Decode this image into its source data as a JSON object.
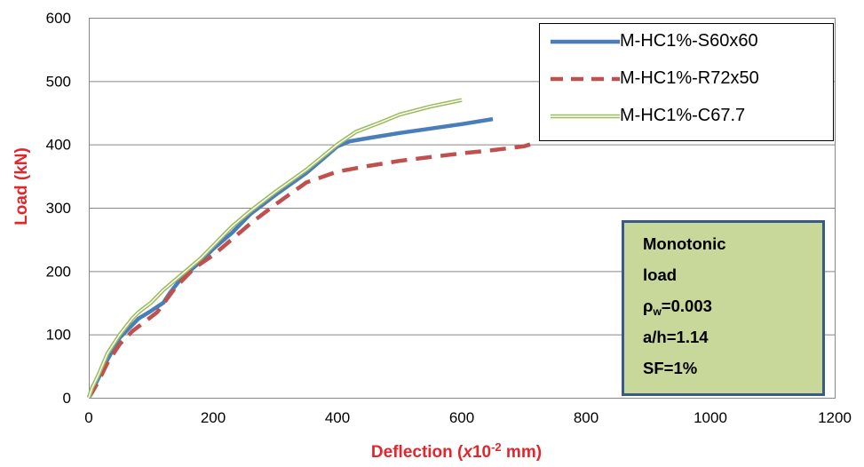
{
  "chart_data": {
    "type": "line",
    "xlabel": {
      "prefix": "Deflection (",
      "italic": "x",
      "base": "10",
      "sup": "-2",
      "suffix": " mm)"
    },
    "ylabel": "Load (kN)",
    "xlim": [
      0,
      1200
    ],
    "ylim": [
      0,
      600
    ],
    "xticks": [
      "0",
      "200",
      "400",
      "600",
      "800",
      "1000",
      "1200"
    ],
    "yticks": [
      "0",
      "100",
      "200",
      "300",
      "400",
      "500",
      "600"
    ],
    "grid": "horizontal",
    "legend_position": "top-right",
    "series": [
      {
        "name": "M-HC1%-S60x60",
        "color": "#4a7ebb",
        "style": "solid",
        "x": [
          0,
          5,
          15,
          30,
          50,
          70,
          80,
          100,
          120,
          130,
          150,
          180,
          200,
          230,
          260,
          300,
          350,
          380,
          400,
          420,
          450,
          500,
          550,
          600,
          650
        ],
        "y": [
          0,
          10,
          30,
          60,
          95,
          115,
          125,
          137,
          150,
          165,
          190,
          215,
          235,
          260,
          290,
          320,
          355,
          380,
          397,
          405,
          410,
          418,
          425,
          432,
          440
        ]
      },
      {
        "name": "M-HC1%-R72x50",
        "color": "#c0504d",
        "style": "dashed",
        "x": [
          0,
          5,
          15,
          30,
          50,
          70,
          90,
          110,
          140,
          170,
          200,
          230,
          260,
          300,
          350,
          400,
          450,
          500,
          550,
          600,
          650,
          700,
          710
        ],
        "y": [
          0,
          8,
          25,
          55,
          85,
          105,
          120,
          135,
          175,
          205,
          225,
          250,
          275,
          305,
          340,
          357,
          366,
          374,
          380,
          386,
          391,
          397,
          400
        ]
      },
      {
        "name": "M-HC1%-C67.7",
        "color": "#9bbb59",
        "style": "double",
        "x": [
          0,
          5,
          15,
          30,
          50,
          70,
          80,
          100,
          120,
          150,
          180,
          200,
          230,
          260,
          300,
          350,
          400,
          430,
          470,
          500,
          550,
          600
        ],
        "y": [
          0,
          15,
          35,
          70,
          100,
          125,
          135,
          150,
          170,
          195,
          220,
          240,
          270,
          295,
          325,
          360,
          400,
          420,
          435,
          447,
          460,
          470
        ]
      }
    ],
    "annotation": [
      "Monotonic",
      "load",
      {
        "base": "ρ",
        "sub": "w",
        "rest": "=0.003"
      },
      "a/h=1.14",
      "SF=1%"
    ]
  }
}
